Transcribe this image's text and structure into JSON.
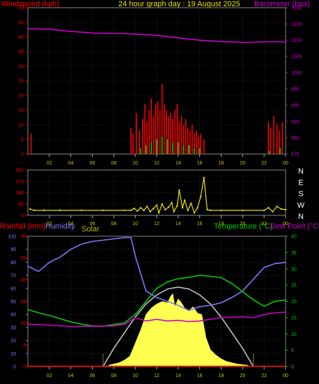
{
  "colors": {
    "windspeed": "#ff0000",
    "barometer": "#cc00cc",
    "direction": "#e6e600",
    "rainfall": "#ff0000",
    "humidity": "#7b7bff",
    "solar": "#ffff50",
    "solar_curve": "#c0c0c0",
    "temperature": "#00cc00",
    "dewpoint": "#cc00cc",
    "axis_text": "#c8c800",
    "grid": "#444444"
  },
  "header": {
    "windspeed_label": "Windspeed (kph)",
    "title": "24 hour graph day : 19 August 2025",
    "barometer_label": "Barometer (hpa)"
  },
  "bottom_header": {
    "rainfall_label": "Rainfall (mm)",
    "humidity_label": "Humidity",
    "solar_label": "Solar",
    "temperature_label": "Temperature (°C)",
    "dewpoint_label": "Dew Point (°C)"
  },
  "x_ticks": [
    "02",
    "04",
    "06",
    "08",
    "10",
    "12",
    "14",
    "16",
    "18",
    "20",
    "22",
    "00"
  ],
  "chart_data": [
    {
      "type": "bar",
      "name": "wind",
      "yleft": {
        "label": "Windspeed (kph)",
        "lim": [
          0,
          50
        ],
        "ticks": [
          "0",
          "5",
          "10",
          "15",
          "20",
          "25",
          "30",
          "35",
          "40",
          "45",
          "50"
        ]
      },
      "yright": {
        "label": "Barometer (hpa)",
        "lim": [
          975,
          1020
        ],
        "ticks": [
          "975",
          "980",
          "985",
          "990",
          "995",
          "1000",
          "1005",
          "1010",
          "1015",
          "1020"
        ]
      },
      "x_range": [
        0,
        24
      ],
      "wind_gust": [
        [
          0.3,
          7
        ],
        [
          9.6,
          9
        ],
        [
          9.8,
          7
        ],
        [
          10.1,
          14
        ],
        [
          10.4,
          8
        ],
        [
          10.7,
          12
        ],
        [
          10.9,
          17
        ],
        [
          11.1,
          11
        ],
        [
          11.3,
          15
        ],
        [
          11.5,
          19
        ],
        [
          11.7,
          13
        ],
        [
          11.9,
          17
        ],
        [
          12.1,
          18
        ],
        [
          12.3,
          15
        ],
        [
          12.5,
          24
        ],
        [
          12.7,
          17
        ],
        [
          12.9,
          15
        ],
        [
          13.1,
          13
        ],
        [
          13.3,
          14
        ],
        [
          13.5,
          12
        ],
        [
          13.7,
          15
        ],
        [
          13.9,
          17
        ],
        [
          14.1,
          11
        ],
        [
          14.3,
          13
        ],
        [
          14.5,
          10
        ],
        [
          14.7,
          12
        ],
        [
          14.9,
          9
        ],
        [
          15.1,
          8
        ],
        [
          15.3,
          10
        ],
        [
          15.5,
          7
        ],
        [
          15.7,
          8
        ],
        [
          15.9,
          6
        ],
        [
          16.1,
          7
        ],
        [
          16.4,
          5
        ],
        [
          22.4,
          11
        ],
        [
          22.6,
          9
        ],
        [
          22.9,
          13
        ],
        [
          23.2,
          10
        ],
        [
          23.4,
          8
        ],
        [
          23.7,
          11
        ]
      ],
      "wind_avg": [
        [
          10.5,
          2
        ],
        [
          11,
          3
        ],
        [
          11.5,
          4
        ],
        [
          12,
          5
        ],
        [
          12.5,
          6
        ],
        [
          13,
          5
        ],
        [
          13.5,
          4
        ],
        [
          14,
          4
        ],
        [
          14.5,
          3
        ],
        [
          15,
          3
        ],
        [
          15.5,
          2
        ],
        [
          16,
          2
        ],
        [
          22.5,
          1
        ],
        [
          23.5,
          2
        ]
      ],
      "barometer": [
        [
          0,
          1013.5
        ],
        [
          2,
          1013.4
        ],
        [
          4,
          1012.7
        ],
        [
          6,
          1012.2
        ],
        [
          8,
          1012.1
        ],
        [
          10,
          1011.9
        ],
        [
          12,
          1011.5
        ],
        [
          14,
          1010.7
        ],
        [
          16,
          1010.0
        ],
        [
          18,
          1009.6
        ],
        [
          20,
          1009.3
        ],
        [
          22,
          1009.5
        ],
        [
          24,
          1009.5
        ]
      ]
    },
    {
      "type": "scatter",
      "name": "wind_direction",
      "yleft": {
        "lim": [
          0,
          360
        ],
        "ticks": [
          "0",
          "90",
          "180",
          "270",
          "360"
        ]
      },
      "yright": {
        "ticks": [
          "N",
          "W",
          "S",
          "E",
          "N"
        ]
      },
      "x_range": [
        0,
        24
      ],
      "points": [
        [
          0.2,
          50
        ],
        [
          0.6,
          40
        ],
        [
          1.5,
          40
        ],
        [
          3,
          40
        ],
        [
          5,
          40
        ],
        [
          7,
          40
        ],
        [
          9,
          40
        ],
        [
          9.6,
          40
        ],
        [
          9.9,
          55
        ],
        [
          10.2,
          35
        ],
        [
          10.5,
          60
        ],
        [
          10.8,
          40
        ],
        [
          11.1,
          70
        ],
        [
          11.4,
          30
        ],
        [
          11.7,
          55
        ],
        [
          12.0,
          80
        ],
        [
          12.2,
          20
        ],
        [
          12.5,
          90
        ],
        [
          12.8,
          45
        ],
        [
          13.1,
          65
        ],
        [
          13.4,
          100
        ],
        [
          13.6,
          30
        ],
        [
          13.9,
          75
        ],
        [
          14.1,
          200
        ],
        [
          14.4,
          60
        ],
        [
          14.6,
          120
        ],
        [
          14.9,
          40
        ],
        [
          15.2,
          95
        ],
        [
          15.5,
          20
        ],
        [
          15.8,
          60
        ],
        [
          16.1,
          150
        ],
        [
          16.4,
          300
        ],
        [
          16.7,
          45
        ],
        [
          17.0,
          40
        ],
        [
          18,
          40
        ],
        [
          20,
          40
        ],
        [
          22,
          40
        ],
        [
          22.4,
          60
        ],
        [
          22.8,
          30
        ],
        [
          23.2,
          70
        ],
        [
          23.6,
          50
        ],
        [
          24,
          45
        ]
      ]
    },
    {
      "type": "line",
      "name": "temp_hum_solar_rain",
      "y_humidity": {
        "label": "Humidity",
        "lim": [
          0,
          100
        ],
        "ticks": [
          "0",
          "10",
          "20",
          "30",
          "40",
          "50",
          "60",
          "70",
          "80",
          "90",
          "100"
        ]
      },
      "y_rain": {
        "label": "Rainfall (mm)",
        "lim": [
          0,
          30
        ],
        "ticks": [
          "0",
          "5",
          "10",
          "15",
          "20",
          "25",
          "30"
        ]
      },
      "y_temp": {
        "label": "Temperature (°C)",
        "lim": [
          0,
          40
        ],
        "ticks": [
          "0",
          "5",
          "10",
          "15",
          "20",
          "25",
          "30",
          "35",
          "40"
        ]
      },
      "x_range": [
        0,
        24
      ],
      "humidity": [
        [
          0,
          77
        ],
        [
          1,
          73
        ],
        [
          2,
          80
        ],
        [
          3,
          84
        ],
        [
          4,
          90
        ],
        [
          5,
          94
        ],
        [
          6,
          96
        ],
        [
          7,
          97
        ],
        [
          8,
          98
        ],
        [
          9,
          99
        ],
        [
          9.6,
          99
        ],
        [
          10,
          85
        ],
        [
          11,
          58
        ],
        [
          12,
          53
        ],
        [
          13,
          50
        ],
        [
          14,
          47
        ],
        [
          15,
          43
        ],
        [
          16,
          46
        ],
        [
          17,
          47
        ],
        [
          18,
          49
        ],
        [
          19,
          53
        ],
        [
          20,
          58
        ],
        [
          21,
          67
        ],
        [
          22,
          76
        ],
        [
          23,
          79
        ],
        [
          24,
          80
        ]
      ],
      "temperature": [
        [
          0,
          17.5
        ],
        [
          1,
          16.5
        ],
        [
          2,
          15.7
        ],
        [
          3,
          14.7
        ],
        [
          4,
          13.7
        ],
        [
          5,
          13.0
        ],
        [
          6,
          12.5
        ],
        [
          7,
          12.4
        ],
        [
          8,
          12.9
        ],
        [
          9,
          13.4
        ],
        [
          10,
          16.0
        ],
        [
          11,
          20.0
        ],
        [
          12,
          24.0
        ],
        [
          13,
          26.0
        ],
        [
          14,
          27.0
        ],
        [
          15,
          27.4
        ],
        [
          16,
          28.0
        ],
        [
          17,
          27.7
        ],
        [
          18,
          27.3
        ],
        [
          19,
          25.5
        ],
        [
          20,
          23.0
        ],
        [
          21,
          20.5
        ],
        [
          22,
          18.5
        ],
        [
          23,
          20.0
        ],
        [
          24,
          20.5
        ]
      ],
      "dewpoint": [
        [
          0,
          13.0
        ],
        [
          2,
          12.7
        ],
        [
          4,
          12.3
        ],
        [
          6,
          12.4
        ],
        [
          8,
          12.5
        ],
        [
          9,
          13.0
        ],
        [
          10,
          15.0
        ],
        [
          11,
          14.0
        ],
        [
          12,
          14.5
        ],
        [
          13,
          14.0
        ],
        [
          14,
          14.2
        ],
        [
          15,
          13.8
        ],
        [
          16,
          14.0
        ],
        [
          17,
          14.5
        ],
        [
          18,
          15.0
        ],
        [
          19,
          15.2
        ],
        [
          20,
          15.3
        ],
        [
          21,
          15.0
        ],
        [
          22,
          16.0
        ],
        [
          23,
          16.5
        ],
        [
          24,
          16.7
        ]
      ],
      "solar_max_curve": [
        [
          7,
          0
        ],
        [
          8,
          14
        ],
        [
          9,
          26
        ],
        [
          10,
          38
        ],
        [
          11,
          48
        ],
        [
          12,
          55
        ],
        [
          13,
          59.5
        ],
        [
          14,
          61
        ],
        [
          15,
          59.5
        ],
        [
          16,
          55
        ],
        [
          17,
          48
        ],
        [
          18,
          38
        ],
        [
          19,
          26
        ],
        [
          20,
          14
        ],
        [
          21,
          0
        ]
      ],
      "solar_percent": [
        [
          7.5,
          1
        ],
        [
          8.5,
          3
        ],
        [
          9.0,
          5
        ],
        [
          9.5,
          8
        ],
        [
          10.0,
          18
        ],
        [
          10.5,
          28
        ],
        [
          11.0,
          40
        ],
        [
          11.5,
          45
        ],
        [
          12.0,
          48
        ],
        [
          12.5,
          50
        ],
        [
          13.0,
          49
        ],
        [
          13.3,
          54
        ],
        [
          13.5,
          56
        ],
        [
          13.7,
          46
        ],
        [
          14.0,
          52
        ],
        [
          14.3,
          49
        ],
        [
          14.6,
          45
        ],
        [
          15.0,
          43
        ],
        [
          15.4,
          46
        ],
        [
          15.8,
          41
        ],
        [
          16.2,
          40
        ],
        [
          16.6,
          22
        ],
        [
          17.0,
          13
        ],
        [
          17.5,
          9
        ],
        [
          18.0,
          6
        ],
        [
          18.5,
          4
        ],
        [
          19.0,
          3
        ],
        [
          19.5,
          2
        ],
        [
          20.5,
          1
        ]
      ],
      "rainfall": 0
    }
  ]
}
